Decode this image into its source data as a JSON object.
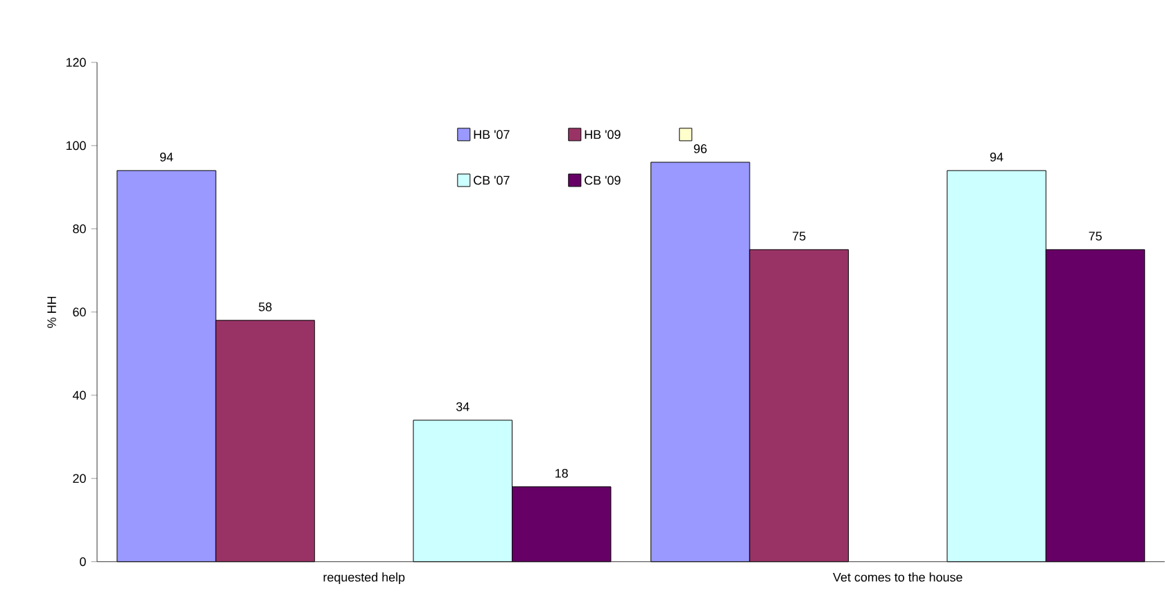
{
  "chart_data": {
    "type": "bar",
    "ylabel": "% HH",
    "categories": [
      "requested help",
      "Vet comes to the house"
    ],
    "series": [
      {
        "name": "HB '07",
        "color": "#9999ff",
        "values": [
          94,
          96
        ]
      },
      {
        "name": "HB '09",
        "color": "#993366",
        "values": [
          58,
          75
        ]
      },
      {
        "color": "#ffffcc",
        "values": [
          null,
          null
        ]
      },
      {
        "name": "CB '07",
        "color": "#ccffff",
        "values": [
          34,
          94
        ]
      },
      {
        "name": "CB '09",
        "color": "#660066",
        "values": [
          18,
          75
        ]
      }
    ],
    "ylim": [
      0,
      120
    ],
    "yticks": [
      0,
      20,
      40,
      60,
      80,
      100,
      120
    ],
    "data_labels": true,
    "grid": false,
    "legend": "top"
  }
}
